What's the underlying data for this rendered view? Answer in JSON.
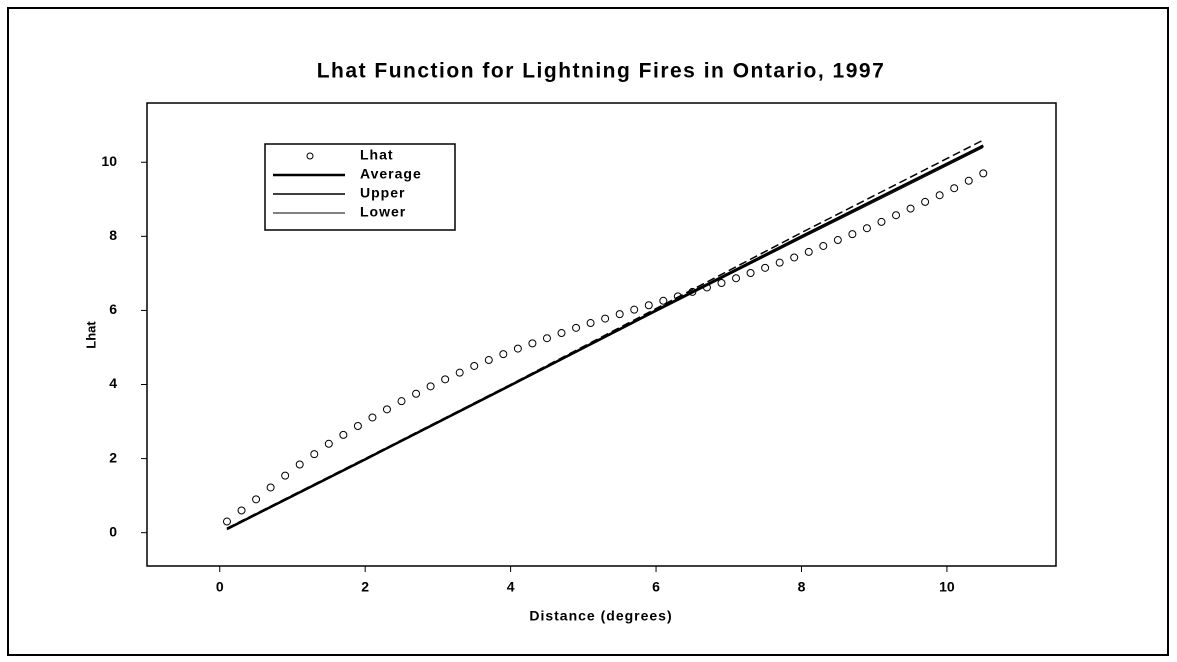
{
  "chart_data": {
    "type": "line",
    "title": "Lhat Function for Lightning Fires in Ontario, 1997",
    "x_label": "Distance (degrees)",
    "y_label": "Lhat",
    "xlim": [
      -1,
      11.5
    ],
    "xticks": [
      0,
      2,
      4,
      6,
      8,
      10
    ],
    "ylim": [
      -0.9,
      11.6
    ],
    "yticks": [
      0,
      2,
      4,
      6,
      8,
      10
    ],
    "legend": "upper-left",
    "series": [
      {
        "name": "Lhat",
        "color": "#000000",
        "marker": "circle",
        "x": [
          0.1,
          0.3,
          0.5,
          0.7,
          0.9,
          1.1,
          1.3,
          1.5,
          1.7,
          1.9,
          2.1,
          2.3,
          2.5,
          2.7,
          2.9,
          3.1,
          3.3,
          3.5,
          3.7,
          3.9,
          4.1,
          4.3,
          4.5,
          4.7,
          4.9,
          5.1,
          5.3,
          5.5,
          5.7,
          5.9,
          6.1,
          6.3,
          6.5,
          6.7,
          6.9,
          7.1,
          7.3,
          7.5,
          7.7,
          7.9,
          8.1,
          8.3,
          8.5,
          8.7,
          8.9,
          9.1,
          9.3,
          9.5,
          9.7,
          9.9,
          10.1,
          10.3,
          10.5
        ],
        "values": [
          0.3,
          0.6,
          0.9,
          1.22,
          1.54,
          1.84,
          2.12,
          2.4,
          2.64,
          2.88,
          3.11,
          3.33,
          3.55,
          3.75,
          3.95,
          4.14,
          4.32,
          4.5,
          4.66,
          4.82,
          4.97,
          5.11,
          5.25,
          5.39,
          5.53,
          5.66,
          5.78,
          5.9,
          6.02,
          6.14,
          6.26,
          6.38,
          6.5,
          6.62,
          6.74,
          6.87,
          7.01,
          7.15,
          7.29,
          7.43,
          7.58,
          7.74,
          7.9,
          8.06,
          8.22,
          8.39,
          8.57,
          8.75,
          8.93,
          9.11,
          9.3,
          9.5,
          9.7
        ]
      },
      {
        "name": "Average",
        "color": "#000000",
        "width": 2.5,
        "x": [
          0.1,
          2,
          4,
          6,
          8,
          10.5
        ],
        "values": [
          0.1,
          1.98,
          3.98,
          6.0,
          8.0,
          10.45
        ]
      },
      {
        "name": "Upper",
        "color": "#000000",
        "width": 1.5,
        "dash": true,
        "x": [
          0.1,
          2,
          4,
          6,
          8,
          10.5
        ],
        "values": [
          0.12,
          2.0,
          4.0,
          6.05,
          8.1,
          10.6
        ]
      },
      {
        "name": "Lower",
        "color": "#000000",
        "width": 1,
        "x": [
          0.1,
          2,
          4,
          6,
          8,
          10.5
        ],
        "values": [
          0.08,
          1.96,
          3.96,
          5.97,
          7.95,
          10.4
        ]
      }
    ]
  }
}
